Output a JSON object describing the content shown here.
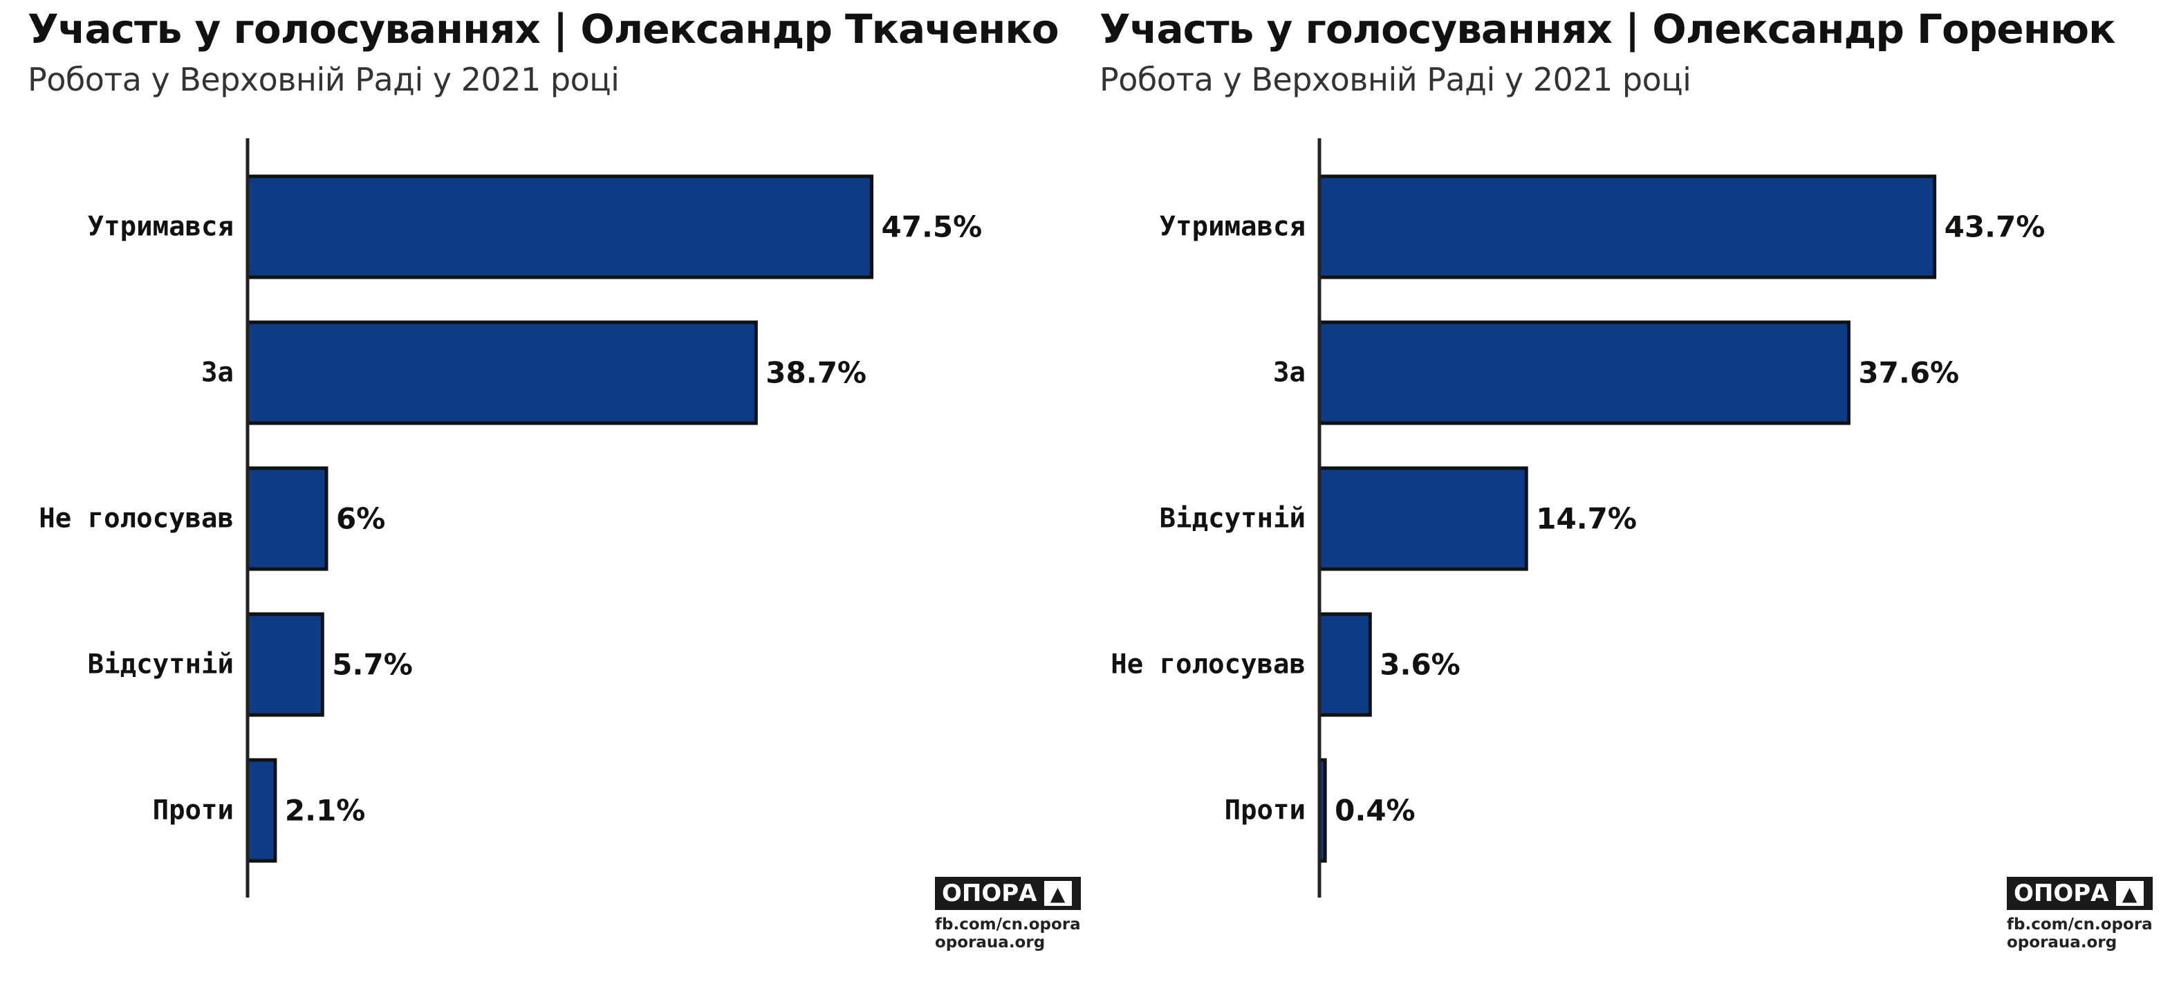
{
  "panels": [
    {
      "title": "Участь у голосуваннях | Олександр Ткаченко",
      "subtitle": "Робота у Верховній Раді у 2021 році",
      "logo": {
        "name": "ОПОРА",
        "symbol": "▲",
        "link1": "fb.com/cn.opora",
        "link2": "oporaua.org"
      }
    },
    {
      "title": "Участь у голосуваннях | Олександр Горенюк",
      "subtitle": "Робота у Верховній Раді у 2021 році",
      "logo": {
        "name": "ОПОРА",
        "symbol": "▲",
        "link1": "fb.com/cn.opora",
        "link2": "oporaua.org"
      }
    }
  ],
  "chart_data": [
    {
      "type": "bar",
      "orientation": "horizontal",
      "title": "Участь у голосуваннях | Олександр Ткаченко",
      "subtitle": "Робота у Верховній Раді у 2021 році",
      "categories": [
        "Утримався",
        "За",
        "Не голосував",
        "Відсутній",
        "Проти"
      ],
      "values": [
        47.5,
        38.7,
        6,
        5.7,
        2.1
      ],
      "value_labels": [
        "47.5%",
        "38.7%",
        "6%",
        "5.7%",
        "2.1%"
      ],
      "xlim": [
        0,
        60
      ],
      "bar_color": "#0d3b85",
      "bar_edge_color": "#111111",
      "grid": false
    },
    {
      "type": "bar",
      "orientation": "horizontal",
      "title": "Участь у голосуваннях | Олександр Горенюк",
      "subtitle": "Робота у Верховній Раді у 2021 році",
      "categories": [
        "Утримався",
        "За",
        "Відсутній",
        "Не голосував",
        "Проти"
      ],
      "values": [
        43.7,
        37.6,
        14.7,
        3.6,
        0.4
      ],
      "value_labels": [
        "43.7%",
        "37.6%",
        "14.7%",
        "3.6%",
        "0.4%"
      ],
      "xlim": [
        0,
        56
      ],
      "bar_color": "#0d3b85",
      "bar_edge_color": "#111111",
      "grid": false
    }
  ]
}
